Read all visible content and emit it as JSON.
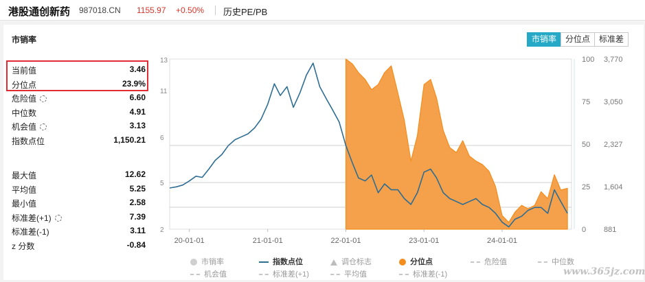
{
  "header": {
    "name": "港股通创新药",
    "code": "987018.CN",
    "price": "1155.97",
    "change": "+0.50%",
    "history": "历史PE/PB"
  },
  "panel": {
    "title": "市销率"
  },
  "tabs": [
    {
      "label": "市销率",
      "active": true
    },
    {
      "label": "分位点",
      "active": false
    },
    {
      "label": "标准差",
      "active": false
    }
  ],
  "stats_top": [
    {
      "label": "当前值",
      "value": "3.46",
      "gear": false
    },
    {
      "label": "分位点",
      "value": "23.9%",
      "gear": false
    },
    {
      "label": "危险值",
      "value": "6.60",
      "gear": true
    },
    {
      "label": "中位数",
      "value": "4.91",
      "gear": false
    },
    {
      "label": "机会值",
      "value": "3.13",
      "gear": true
    },
    {
      "label": "指数点位",
      "value": "1,150.21",
      "gear": false
    }
  ],
  "stats_bottom": [
    {
      "label": "最大值",
      "value": "12.62",
      "gear": false
    },
    {
      "label": "平均值",
      "value": "5.25",
      "gear": false
    },
    {
      "label": "最小值",
      "value": "2.58",
      "gear": false
    },
    {
      "label": "标准差(+1)",
      "value": "7.39",
      "gear": true
    },
    {
      "label": "标准差(-1)",
      "value": "3.11",
      "gear": false
    },
    {
      "label": "z 分数",
      "value": "-0.84",
      "gear": false
    }
  ],
  "legend": [
    {
      "label": "市销率",
      "marker": "dot",
      "color": "#cfcfcf"
    },
    {
      "label": "指数点位",
      "marker": "line",
      "color": "#2e6d93"
    },
    {
      "label": "调仓标志",
      "marker": "triangle",
      "color": "#bdbdbd"
    },
    {
      "label": "分位点",
      "marker": "dot",
      "color": "#f28d1e"
    },
    {
      "label": "危险值",
      "marker": "dash",
      "color": "#c7c7c7"
    },
    {
      "label": "中位数",
      "marker": "dash",
      "color": "#c7c7c7"
    },
    {
      "label": "机会值",
      "marker": "dash",
      "color": "#c7c7c7"
    },
    {
      "label": "标准差(+1)",
      "marker": "dash",
      "color": "#c7c7c7"
    },
    {
      "label": "平均值",
      "marker": "dash",
      "color": "#c7c7c7"
    },
    {
      "label": "标准差(-1)",
      "marker": "dash",
      "color": "#c7c7c7"
    }
  ],
  "colors": {
    "accent": "#25a9c6",
    "up": "#d9342b",
    "index_line": "#2e6d93",
    "percentile_fill": "#f28d1e",
    "highlight": "#e12a33"
  },
  "watermark": "www.365jz.com",
  "chart_data": {
    "type": "area",
    "x_ticks": [
      "20-01-01",
      "21-01-01",
      "22-01-01",
      "23-01-01",
      "24-01-01"
    ],
    "left_axis": {
      "ticks": [
        "13",
        "11",
        "6",
        "5",
        "2"
      ]
    },
    "percentile_axis": {
      "ticks": [
        "100",
        "75",
        "50",
        "25",
        "0"
      ],
      "range": [
        0,
        100
      ]
    },
    "index_axis": {
      "ticks": [
        "3,770",
        "3,050",
        "2,327",
        "1,604",
        "881"
      ],
      "range": [
        881,
        3770
      ]
    },
    "reference_lines": [
      6.6,
      4.91,
      3.13
    ],
    "series": [
      {
        "name": "指数点位",
        "x": [
          "2019-10-01",
          "2019-11-01",
          "2019-12-01",
          "2020-01-01",
          "2020-02-01",
          "2020-03-01",
          "2020-04-01",
          "2020-05-01",
          "2020-06-01",
          "2020-07-01",
          "2020-08-01",
          "2020-09-01",
          "2020-10-01",
          "2020-11-01",
          "2020-12-01",
          "2021-01-01",
          "2021-02-01",
          "2021-03-01",
          "2021-04-01",
          "2021-05-01",
          "2021-06-01",
          "2021-07-01",
          "2021-08-01",
          "2021-09-01",
          "2021-10-01",
          "2021-11-01",
          "2021-12-01",
          "2022-01-01",
          "2022-02-01",
          "2022-03-01",
          "2022-04-01",
          "2022-05-01",
          "2022-06-01",
          "2022-07-01",
          "2022-08-01",
          "2022-09-01",
          "2022-10-01",
          "2022-11-01",
          "2022-12-01",
          "2023-01-01",
          "2023-02-01",
          "2023-03-01",
          "2023-04-01",
          "2023-05-01",
          "2023-06-01",
          "2023-07-01",
          "2023-08-01",
          "2023-09-01",
          "2023-10-01",
          "2023-11-01",
          "2023-12-01",
          "2024-01-01",
          "2024-02-01",
          "2024-03-01",
          "2024-04-01",
          "2024-05-01",
          "2024-06-01",
          "2024-07-01",
          "2024-08-01",
          "2024-09-01",
          "2024-10-01",
          "2024-11-01"
        ],
        "values": [
          1580,
          1600,
          1630,
          1700,
          1780,
          1760,
          1900,
          2050,
          2150,
          2300,
          2400,
          2450,
          2500,
          2600,
          2750,
          3000,
          3350,
          3150,
          3300,
          2950,
          3200,
          3500,
          3700,
          3300,
          3100,
          2900,
          2700,
          2300,
          2000,
          1750,
          1700,
          1800,
          1500,
          1650,
          1550,
          1550,
          1400,
          1300,
          1500,
          1850,
          1900,
          1750,
          1500,
          1400,
          1350,
          1300,
          1350,
          1400,
          1300,
          1250,
          1150,
          1000,
          920,
          1050,
          1100,
          1200,
          1250,
          1250,
          1150,
          1550,
          1350,
          1150
        ]
      },
      {
        "name": "分位点",
        "x": [
          "2022-01-01",
          "2022-02-01",
          "2022-03-01",
          "2022-04-01",
          "2022-05-01",
          "2022-06-01",
          "2022-07-01",
          "2022-08-01",
          "2022-09-01",
          "2022-10-01",
          "2022-11-01",
          "2022-12-01",
          "2023-01-01",
          "2023-02-01",
          "2023-03-01",
          "2023-04-01",
          "2023-05-01",
          "2023-06-01",
          "2023-07-01",
          "2023-08-01",
          "2023-09-01",
          "2023-10-01",
          "2023-11-01",
          "2023-12-01",
          "2024-01-01",
          "2024-02-01",
          "2024-03-01",
          "2024-04-01",
          "2024-05-01",
          "2024-06-01",
          "2024-07-01",
          "2024-08-01",
          "2024-09-01",
          "2024-10-01",
          "2024-11-01"
        ],
        "values": [
          100,
          97,
          92,
          88,
          82,
          85,
          92,
          96,
          80,
          64,
          40,
          55,
          85,
          88,
          77,
          58,
          48,
          45,
          52,
          43,
          40,
          38,
          34,
          25,
          8,
          4,
          10,
          14,
          12,
          14,
          22,
          18,
          32,
          23,
          24
        ]
      }
    ]
  }
}
